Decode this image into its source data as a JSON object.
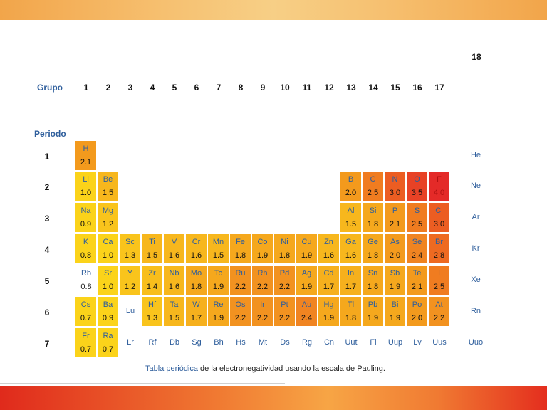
{
  "header": {
    "group_label": "Grupo",
    "period_label": "Periodo",
    "group_18": "18"
  },
  "groups": [
    "1",
    "2",
    "3",
    "4",
    "5",
    "6",
    "7",
    "8",
    "9",
    "10",
    "11",
    "12",
    "13",
    "14",
    "15",
    "16",
    "17"
  ],
  "periods": [
    "1",
    "2",
    "3",
    "4",
    "5",
    "6",
    "7"
  ],
  "caption": {
    "link": "Tabla periódica",
    "rest": " de la electronegatividad usando la escala de Pauling."
  },
  "elements": [
    {
      "s": "H",
      "en": "2.1",
      "r": 1,
      "c": 1,
      "fill": "#f39a1d"
    },
    {
      "s": "He",
      "en": "",
      "r": 1,
      "c": 18,
      "fill": ""
    },
    {
      "s": "Li",
      "en": "1.0",
      "r": 2,
      "c": 1,
      "fill": "#fbd31a"
    },
    {
      "s": "Be",
      "en": "1.5",
      "r": 2,
      "c": 2,
      "fill": "#f7b71d"
    },
    {
      "s": "B",
      "en": "2.0",
      "r": 2,
      "c": 13,
      "fill": "#f39a1d"
    },
    {
      "s": "C",
      "en": "2.5",
      "r": 2,
      "c": 14,
      "fill": "#f07c20"
    },
    {
      "s": "N",
      "en": "3.0",
      "r": 2,
      "c": 15,
      "fill": "#ec5d22"
    },
    {
      "s": "O",
      "en": "3.5",
      "r": 2,
      "c": 16,
      "fill": "#e84226"
    },
    {
      "s": "F",
      "en": "4.0",
      "r": 2,
      "c": 17,
      "fill": "#e42a28",
      "hot": true
    },
    {
      "s": "Ne",
      "en": "",
      "r": 2,
      "c": 18,
      "fill": ""
    },
    {
      "s": "Na",
      "en": "0.9",
      "r": 3,
      "c": 1,
      "fill": "#fbd31a"
    },
    {
      "s": "Mg",
      "en": "1.2",
      "r": 3,
      "c": 2,
      "fill": "#f9c41c"
    },
    {
      "s": "Al",
      "en": "1.5",
      "r": 3,
      "c": 13,
      "fill": "#f7b71d"
    },
    {
      "s": "Si",
      "en": "1.8",
      "r": 3,
      "c": 14,
      "fill": "#f5a81d"
    },
    {
      "s": "P",
      "en": "2.1",
      "r": 3,
      "c": 15,
      "fill": "#f39a1d"
    },
    {
      "s": "S",
      "en": "2.5",
      "r": 3,
      "c": 16,
      "fill": "#f07c20"
    },
    {
      "s": "Cl",
      "en": "3.0",
      "r": 3,
      "c": 17,
      "fill": "#ec5d22"
    },
    {
      "s": "Ar",
      "en": "",
      "r": 3,
      "c": 18,
      "fill": ""
    },
    {
      "s": "K",
      "en": "0.8",
      "r": 4,
      "c": 1,
      "fill": "#fbd31a"
    },
    {
      "s": "Ca",
      "en": "1.0",
      "r": 4,
      "c": 2,
      "fill": "#fbd31a"
    },
    {
      "s": "Sc",
      "en": "1.3",
      "r": 4,
      "c": 3,
      "fill": "#f9c41c"
    },
    {
      "s": "Ti",
      "en": "1.5",
      "r": 4,
      "c": 4,
      "fill": "#f7b71d"
    },
    {
      "s": "V",
      "en": "1.6",
      "r": 4,
      "c": 5,
      "fill": "#f7b71d"
    },
    {
      "s": "Cr",
      "en": "1.6",
      "r": 4,
      "c": 6,
      "fill": "#f7b71d"
    },
    {
      "s": "Mn",
      "en": "1.5",
      "r": 4,
      "c": 7,
      "fill": "#f7b71d"
    },
    {
      "s": "Fe",
      "en": "1.8",
      "r": 4,
      "c": 8,
      "fill": "#f5a81d"
    },
    {
      "s": "Co",
      "en": "1.9",
      "r": 4,
      "c": 9,
      "fill": "#f5a81d"
    },
    {
      "s": "Ni",
      "en": "1.8",
      "r": 4,
      "c": 10,
      "fill": "#f5a81d"
    },
    {
      "s": "Cu",
      "en": "1.9",
      "r": 4,
      "c": 11,
      "fill": "#f5a81d"
    },
    {
      "s": "Zn",
      "en": "1.6",
      "r": 4,
      "c": 12,
      "fill": "#f7b71d"
    },
    {
      "s": "Ga",
      "en": "1.6",
      "r": 4,
      "c": 13,
      "fill": "#f7b71d"
    },
    {
      "s": "Ge",
      "en": "1.8",
      "r": 4,
      "c": 14,
      "fill": "#f5a81d"
    },
    {
      "s": "As",
      "en": "2.0",
      "r": 4,
      "c": 15,
      "fill": "#f39a1d"
    },
    {
      "s": "Se",
      "en": "2.4",
      "r": 4,
      "c": 16,
      "fill": "#f08421"
    },
    {
      "s": "Br",
      "en": "2.8",
      "r": 4,
      "c": 17,
      "fill": "#ee6a21"
    },
    {
      "s": "Kr",
      "en": "",
      "r": 4,
      "c": 18,
      "fill": ""
    },
    {
      "s": "Rb",
      "en": "0.8",
      "r": 5,
      "c": 1,
      "fill": ""
    },
    {
      "s": "Sr",
      "en": "1.0",
      "r": 5,
      "c": 2,
      "fill": "#fbd31a"
    },
    {
      "s": "Y",
      "en": "1.2",
      "r": 5,
      "c": 3,
      "fill": "#f9c41c"
    },
    {
      "s": "Zr",
      "en": "1.4",
      "r": 5,
      "c": 4,
      "fill": "#f8be1c"
    },
    {
      "s": "Nb",
      "en": "1.6",
      "r": 5,
      "c": 5,
      "fill": "#f7b71d"
    },
    {
      "s": "Mo",
      "en": "1.8",
      "r": 5,
      "c": 6,
      "fill": "#f5a81d"
    },
    {
      "s": "Tc",
      "en": "1.9",
      "r": 5,
      "c": 7,
      "fill": "#f5a81d"
    },
    {
      "s": "Ru",
      "en": "2.2",
      "r": 5,
      "c": 8,
      "fill": "#f29220"
    },
    {
      "s": "Rh",
      "en": "2.2",
      "r": 5,
      "c": 9,
      "fill": "#f29220"
    },
    {
      "s": "Pd",
      "en": "2.2",
      "r": 5,
      "c": 10,
      "fill": "#f29220"
    },
    {
      "s": "Ag",
      "en": "1.9",
      "r": 5,
      "c": 11,
      "fill": "#f5a81d"
    },
    {
      "s": "Cd",
      "en": "1.7",
      "r": 5,
      "c": 12,
      "fill": "#f6b01d"
    },
    {
      "s": "In",
      "en": "1.7",
      "r": 5,
      "c": 13,
      "fill": "#f6b01d"
    },
    {
      "s": "Sn",
      "en": "1.8",
      "r": 5,
      "c": 14,
      "fill": "#f5a81d"
    },
    {
      "s": "Sb",
      "en": "1.9",
      "r": 5,
      "c": 15,
      "fill": "#f5a81d"
    },
    {
      "s": "Te",
      "en": "2.1",
      "r": 5,
      "c": 16,
      "fill": "#f39a1d"
    },
    {
      "s": "I",
      "en": "2.5",
      "r": 5,
      "c": 17,
      "fill": "#f07c20"
    },
    {
      "s": "Xe",
      "en": "",
      "r": 5,
      "c": 18,
      "fill": ""
    },
    {
      "s": "Cs",
      "en": "0.7",
      "r": 6,
      "c": 1,
      "fill": "#fbd31a"
    },
    {
      "s": "Ba",
      "en": "0.9",
      "r": 6,
      "c": 2,
      "fill": "#fbd31a"
    },
    {
      "s": "Lu",
      "en": "",
      "r": 6,
      "c": 3,
      "fill": ""
    },
    {
      "s": "Hf",
      "en": "1.3",
      "r": 6,
      "c": 4,
      "fill": "#f9c41c"
    },
    {
      "s": "Ta",
      "en": "1.5",
      "r": 6,
      "c": 5,
      "fill": "#f7b71d"
    },
    {
      "s": "W",
      "en": "1.7",
      "r": 6,
      "c": 6,
      "fill": "#f6b01d"
    },
    {
      "s": "Re",
      "en": "1.9",
      "r": 6,
      "c": 7,
      "fill": "#f5a81d"
    },
    {
      "s": "Os",
      "en": "2.2",
      "r": 6,
      "c": 8,
      "fill": "#f29220"
    },
    {
      "s": "Ir",
      "en": "2.2",
      "r": 6,
      "c": 9,
      "fill": "#f29220"
    },
    {
      "s": "Pt",
      "en": "2.2",
      "r": 6,
      "c": 10,
      "fill": "#f29220"
    },
    {
      "s": "Au",
      "en": "2.4",
      "r": 6,
      "c": 11,
      "fill": "#f08421"
    },
    {
      "s": "Hg",
      "en": "1.9",
      "r": 6,
      "c": 12,
      "fill": "#f5a81d"
    },
    {
      "s": "Tl",
      "en": "1.8",
      "r": 6,
      "c": 13,
      "fill": "#f5a81d"
    },
    {
      "s": "Pb",
      "en": "1.9",
      "r": 6,
      "c": 14,
      "fill": "#f5a81d"
    },
    {
      "s": "Bi",
      "en": "1.9",
      "r": 6,
      "c": 15,
      "fill": "#f5a81d"
    },
    {
      "s": "Po",
      "en": "2.0",
      "r": 6,
      "c": 16,
      "fill": "#f39a1d"
    },
    {
      "s": "At",
      "en": "2.2",
      "r": 6,
      "c": 17,
      "fill": "#f29220"
    },
    {
      "s": "Rn",
      "en": "",
      "r": 6,
      "c": 18,
      "fill": ""
    },
    {
      "s": "Fr",
      "en": "0.7",
      "r": 7,
      "c": 1,
      "fill": "#fbd31a"
    },
    {
      "s": "Ra",
      "en": "0.7",
      "r": 7,
      "c": 2,
      "fill": "#fbd31a"
    },
    {
      "s": "Lr",
      "en": "",
      "r": 7,
      "c": 3,
      "fill": ""
    },
    {
      "s": "Rf",
      "en": "",
      "r": 7,
      "c": 4,
      "fill": ""
    },
    {
      "s": "Db",
      "en": "",
      "r": 7,
      "c": 5,
      "fill": ""
    },
    {
      "s": "Sg",
      "en": "",
      "r": 7,
      "c": 6,
      "fill": ""
    },
    {
      "s": "Bh",
      "en": "",
      "r": 7,
      "c": 7,
      "fill": ""
    },
    {
      "s": "Hs",
      "en": "",
      "r": 7,
      "c": 8,
      "fill": ""
    },
    {
      "s": "Mt",
      "en": "",
      "r": 7,
      "c": 9,
      "fill": ""
    },
    {
      "s": "Ds",
      "en": "",
      "r": 7,
      "c": 10,
      "fill": ""
    },
    {
      "s": "Rg",
      "en": "",
      "r": 7,
      "c": 11,
      "fill": ""
    },
    {
      "s": "Cn",
      "en": "",
      "r": 7,
      "c": 12,
      "fill": ""
    },
    {
      "s": "Uut",
      "en": "",
      "r": 7,
      "c": 13,
      "fill": ""
    },
    {
      "s": "Fl",
      "en": "",
      "r": 7,
      "c": 14,
      "fill": ""
    },
    {
      "s": "Uup",
      "en": "",
      "r": 7,
      "c": 15,
      "fill": ""
    },
    {
      "s": "Lv",
      "en": "",
      "r": 7,
      "c": 16,
      "fill": ""
    },
    {
      "s": "Uus",
      "en": "",
      "r": 7,
      "c": 17,
      "fill": ""
    },
    {
      "s": "Uuo",
      "en": "",
      "r": 7,
      "c": 18,
      "fill": ""
    }
  ]
}
